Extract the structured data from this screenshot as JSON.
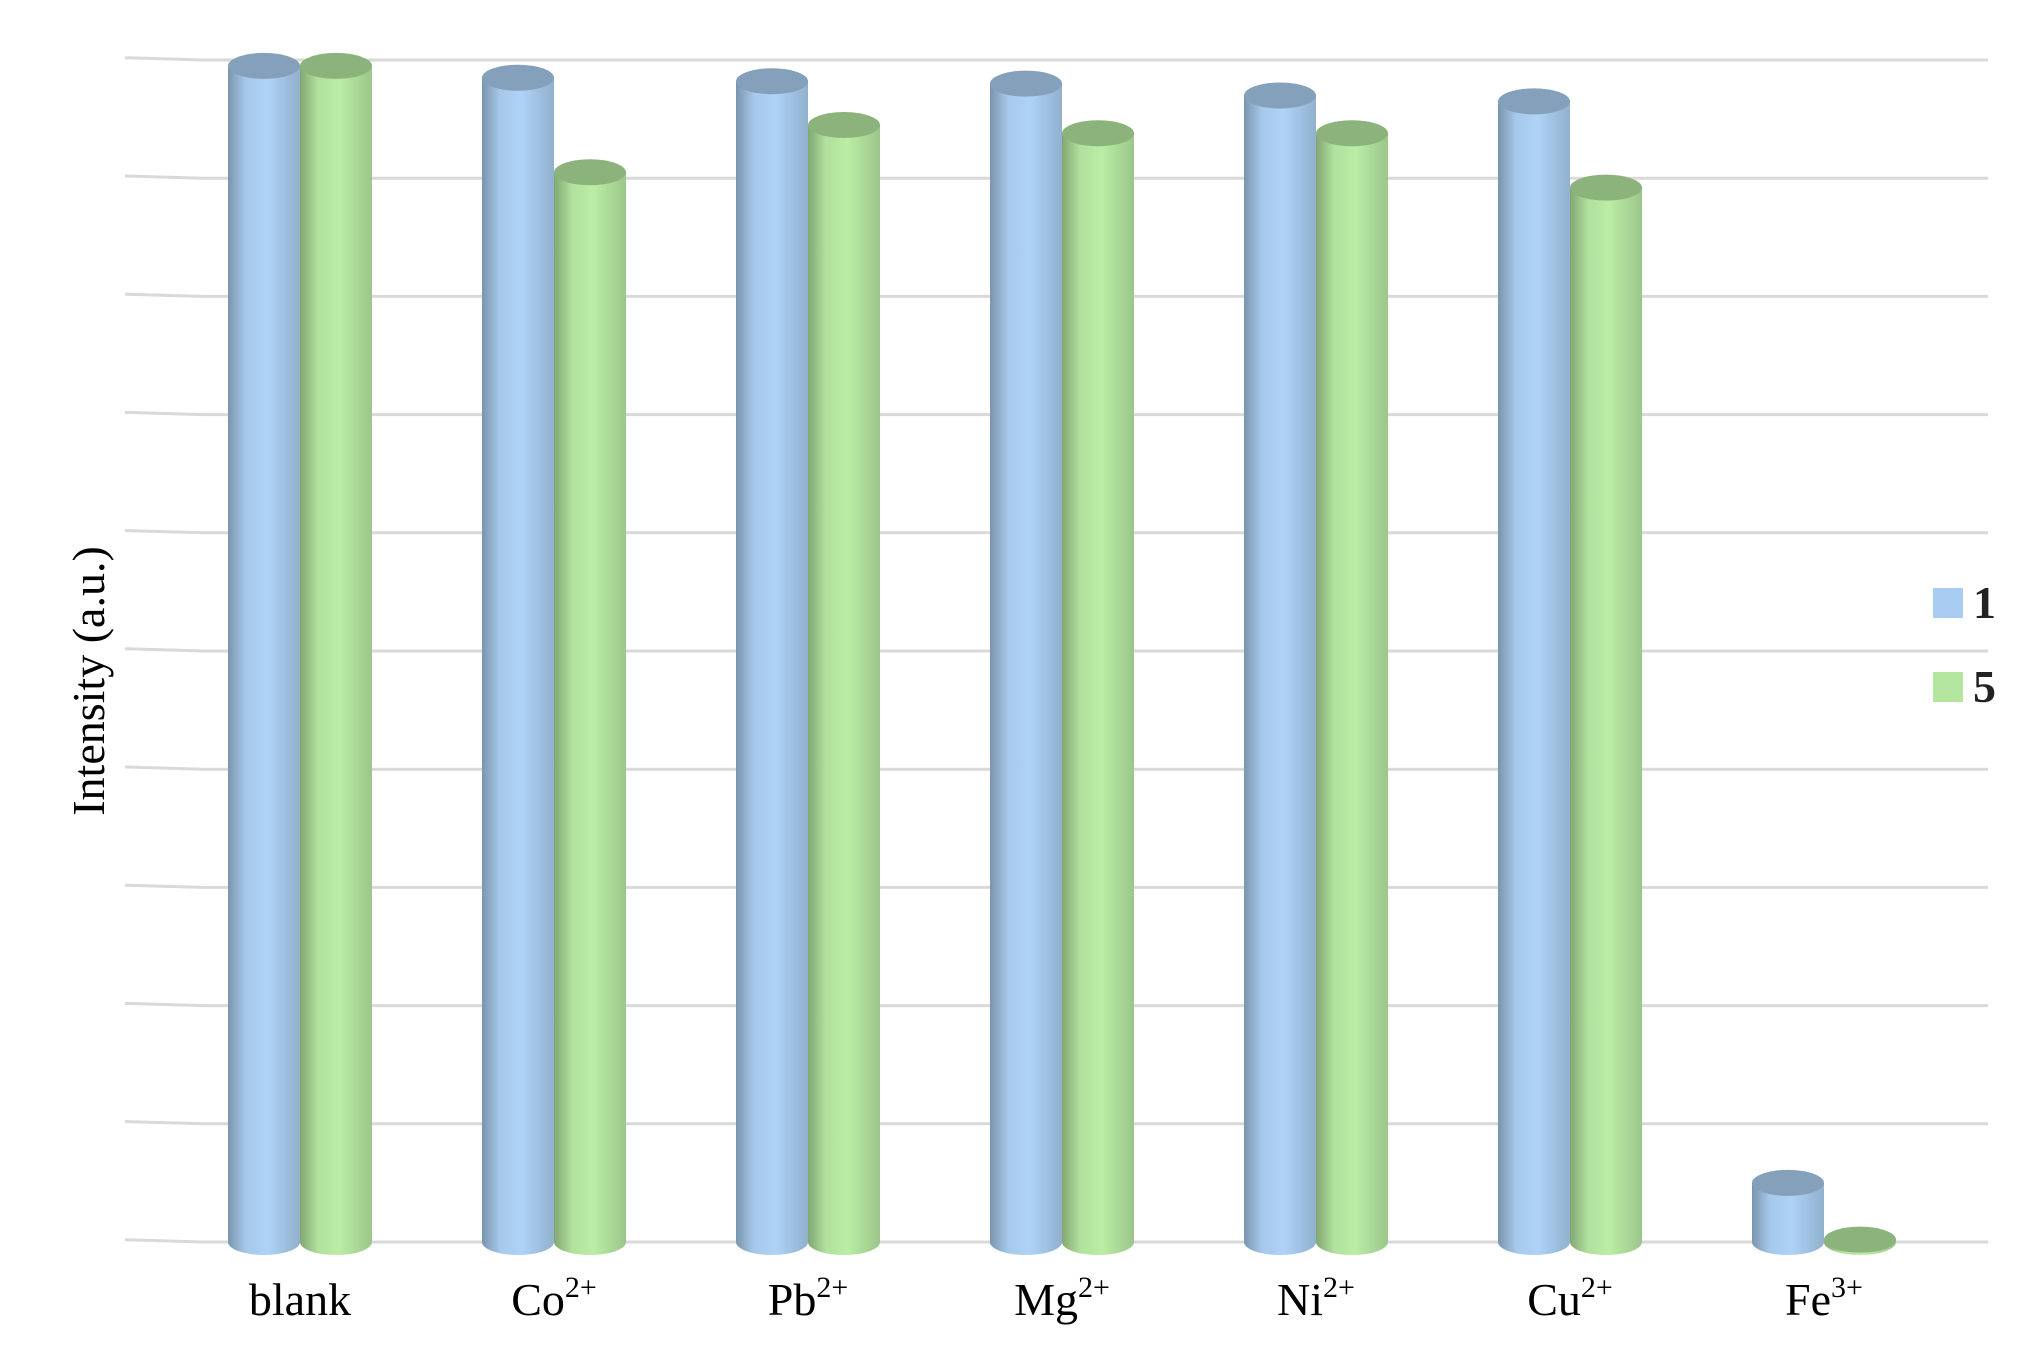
{
  "chart_data": {
    "type": "bar",
    "title": "",
    "xlabel": "",
    "ylabel": "Intensity (a.u.)",
    "ylim": [
      0,
      10
    ],
    "grid": true,
    "legend_position": "right",
    "categories": [
      {
        "base": "blank",
        "sup": ""
      },
      {
        "base": "Co",
        "sup": "2+"
      },
      {
        "base": "Pb",
        "sup": "2+"
      },
      {
        "base": "Mg",
        "sup": "2+"
      },
      {
        "base": "Ni",
        "sup": "2+"
      },
      {
        "base": "Cu",
        "sup": "2+"
      },
      {
        "base": "Fe",
        "sup": "3+"
      }
    ],
    "series": [
      {
        "name": "1",
        "color": "#a9cdf0",
        "values": [
          9.95,
          9.85,
          9.82,
          9.8,
          9.7,
          9.65,
          0.5
        ]
      },
      {
        "name": "5",
        "color": "#b5e6a0",
        "values": [
          9.95,
          9.05,
          9.45,
          9.38,
          9.38,
          8.92,
          0.02
        ]
      }
    ]
  }
}
